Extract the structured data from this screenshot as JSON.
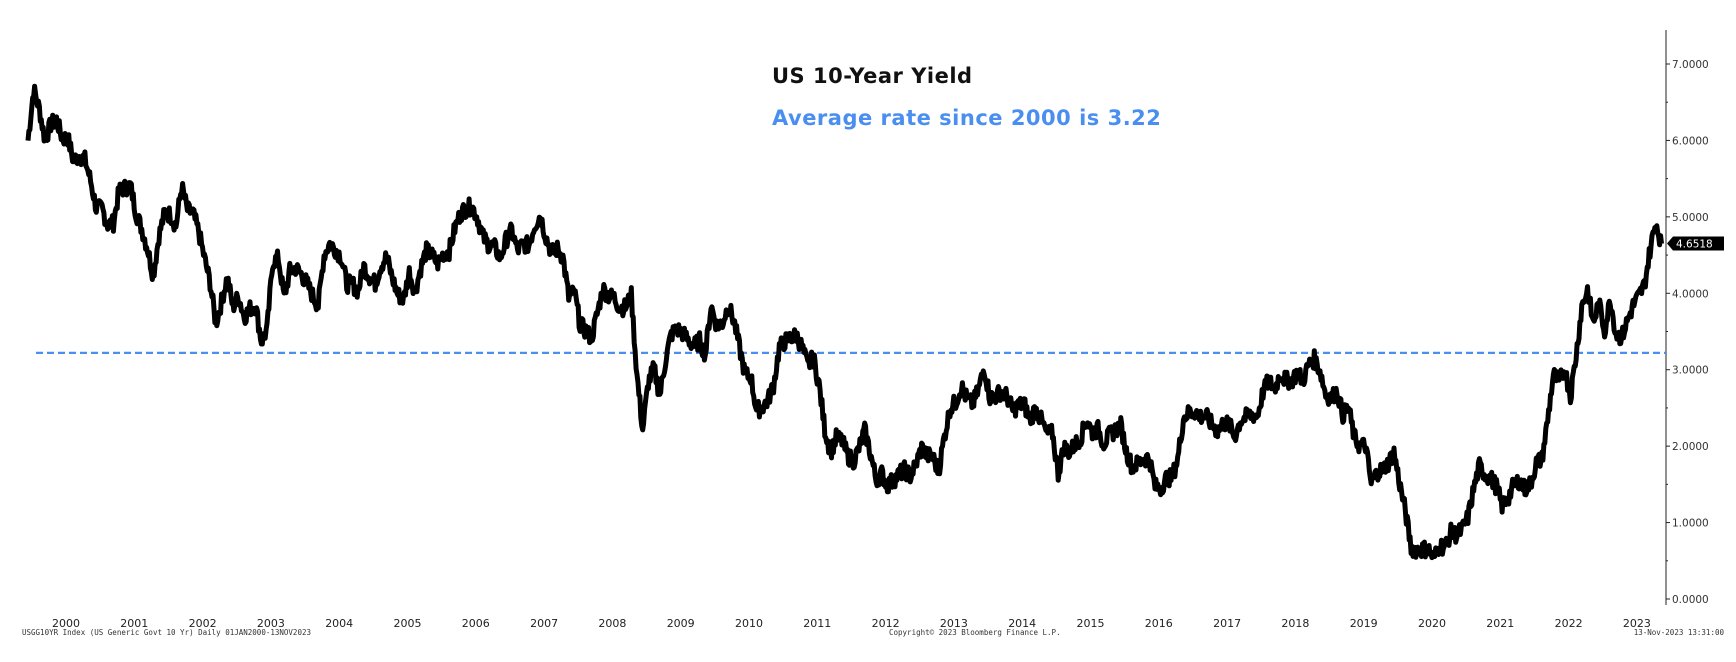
{
  "chart_data": {
    "type": "line",
    "title": "US 10-Year Yield",
    "subtitle": "Average rate since 2000 is 3.22",
    "average": 3.22,
    "xlabel": "",
    "ylabel": "",
    "ylim": [
      0,
      7
    ],
    "yticks": [
      "0.0000",
      "1.0000",
      "2.0000",
      "3.0000",
      "4.0000",
      "5.0000",
      "6.0000",
      "7.0000"
    ],
    "xticks": [
      "2000",
      "2001",
      "2002",
      "2003",
      "2004",
      "2005",
      "2006",
      "2007",
      "2008",
      "2009",
      "2010",
      "2011",
      "2012",
      "2013",
      "2014",
      "2015",
      "2016",
      "2017",
      "2018",
      "2019",
      "2020",
      "2021",
      "2022",
      "2023"
    ],
    "last_value_label": "4.6518",
    "grid": false,
    "series": [
      {
        "name": "USGG10YR Index",
        "start": "2000-01",
        "frequency": "monthly",
        "values": [
          6.0,
          6.67,
          6.41,
          6.0,
          6.21,
          6.27,
          6.03,
          6.03,
          5.73,
          5.8,
          5.75,
          5.47,
          5.11,
          5.11,
          4.9,
          4.92,
          5.34,
          5.38,
          5.41,
          5.05,
          4.84,
          4.59,
          4.23,
          4.75,
          5.05,
          5.03,
          4.88,
          5.4,
          5.09,
          5.04,
          4.8,
          4.46,
          4.14,
          3.6,
          3.89,
          4.21,
          3.82,
          3.96,
          3.69,
          3.8,
          3.84,
          3.37,
          3.52,
          4.41,
          4.46,
          3.94,
          4.29,
          4.33,
          4.25,
          4.13,
          3.97,
          3.84,
          4.5,
          4.65,
          4.58,
          4.48,
          4.12,
          4.12,
          4.03,
          4.35,
          4.22,
          4.13,
          4.36,
          4.48,
          4.2,
          3.98,
          3.92,
          4.28,
          4.02,
          4.33,
          4.56,
          4.49,
          4.39,
          4.52,
          4.55,
          4.85,
          5.05,
          5.11,
          5.14,
          4.98,
          4.73,
          4.63,
          4.6,
          4.46,
          4.7,
          4.82,
          4.56,
          4.64,
          4.63,
          4.89,
          5.02,
          4.74,
          4.53,
          4.58,
          4.47,
          3.94,
          4.02,
          3.59,
          3.51,
          3.41,
          3.73,
          4.06,
          3.97,
          3.94,
          3.81,
          3.82,
          3.97,
          2.92,
          2.21,
          2.84,
          3.02,
          2.66,
          3.12,
          3.46,
          3.53,
          3.48,
          3.39,
          3.31,
          3.38,
          3.2,
          3.84,
          3.58,
          3.61,
          3.83,
          3.65,
          3.29,
          2.93,
          2.91,
          2.47,
          2.51,
          2.6,
          2.8,
          3.29,
          3.37,
          3.42,
          3.45,
          3.29,
          3.05,
          3.16,
          2.8,
          2.22,
          1.92,
          2.11,
          2.07,
          1.88,
          1.8,
          1.97,
          2.21,
          1.91,
          1.56,
          1.64,
          1.49,
          1.55,
          1.63,
          1.69,
          1.61,
          1.76,
          1.98,
          1.88,
          1.85,
          1.67,
          2.13,
          2.49,
          2.58,
          2.78,
          2.61,
          2.55,
          2.74,
          3.03,
          2.64,
          2.65,
          2.72,
          2.65,
          2.47,
          2.53,
          2.56,
          2.34,
          2.49,
          2.34,
          2.16,
          2.17,
          1.64,
          1.99,
          1.92,
          2.03,
          2.12,
          2.35,
          2.18,
          2.22,
          2.04,
          2.14,
          2.21,
          2.27,
          1.92,
          1.73,
          1.77,
          1.83,
          1.85,
          1.47,
          1.45,
          1.58,
          1.59,
          1.83,
          2.37,
          2.44,
          2.45,
          2.39,
          2.39,
          2.28,
          2.2,
          2.3,
          2.29,
          2.12,
          2.33,
          2.38,
          2.41,
          2.4,
          2.71,
          2.86,
          2.74,
          2.95,
          2.86,
          2.86,
          2.96,
          2.86,
          3.06,
          3.14,
          2.99,
          2.68,
          2.63,
          2.72,
          2.41,
          2.5,
          2.12,
          2.0,
          2.01,
          1.5,
          1.66,
          1.69,
          1.78,
          1.92,
          1.51,
          1.15,
          0.67,
          0.64,
          0.65,
          0.66,
          0.53,
          0.7,
          0.68,
          0.87,
          0.84,
          0.91,
          1.07,
          1.44,
          1.74,
          1.63,
          1.58,
          1.47,
          1.22,
          1.31,
          1.49,
          1.55,
          1.44,
          1.51,
          1.78,
          1.83,
          2.34,
          2.94,
          2.84,
          3.01,
          2.65,
          3.19,
          3.83,
          4.05,
          3.61,
          3.87,
          3.51,
          3.92,
          3.47,
          3.42,
          3.64,
          3.84,
          3.96,
          4.11,
          4.57,
          4.93,
          4.65
        ]
      }
    ]
  },
  "footer": {
    "source": "USGG10YR Index (US Generic Govt 10 Yr)  Daily 01JAN2000-13NOV2023",
    "copyright": "Copyright© 2023 Bloomberg Finance L.P.",
    "timestamp": "13-Nov-2023 13:31:00"
  },
  "colors": {
    "line": "#000000",
    "average": "#4a8ef0"
  }
}
